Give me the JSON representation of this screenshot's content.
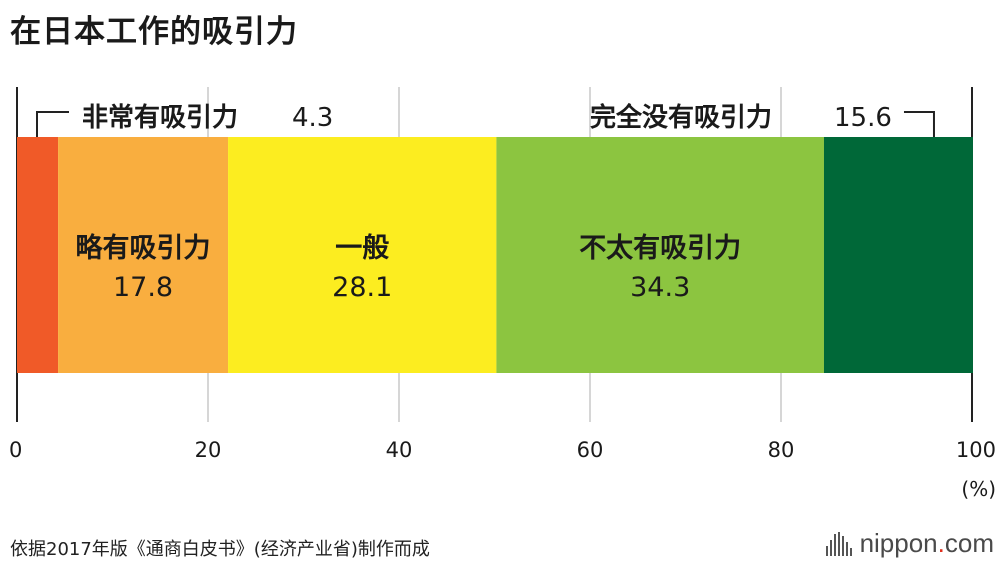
{
  "title": "在日本工作的吸引力",
  "footnote": "依据2017年版《通商白皮书》(经济产业省)制作而成",
  "brand": {
    "name": "nippon",
    "dot": ".",
    "tld": "com"
  },
  "chart_data": {
    "type": "bar",
    "orientation": "horizontal-stacked-100",
    "xlim": [
      0,
      100
    ],
    "xticks": [
      0,
      20,
      40,
      60,
      80,
      100
    ],
    "unit": "(%)",
    "grid": true,
    "segments": [
      {
        "name": "非常有吸引力",
        "value": 4.3,
        "color": "#f05a28"
      },
      {
        "name": "略有吸引力",
        "value": 17.8,
        "color": "#f9ae3f"
      },
      {
        "name": "一般",
        "value": 28.1,
        "color": "#fced20"
      },
      {
        "name": "不太有吸引力",
        "value": 34.3,
        "color": "#8cc540"
      },
      {
        "name": "完全没有吸引力",
        "value": 15.6,
        "color": "#006838"
      }
    ]
  }
}
